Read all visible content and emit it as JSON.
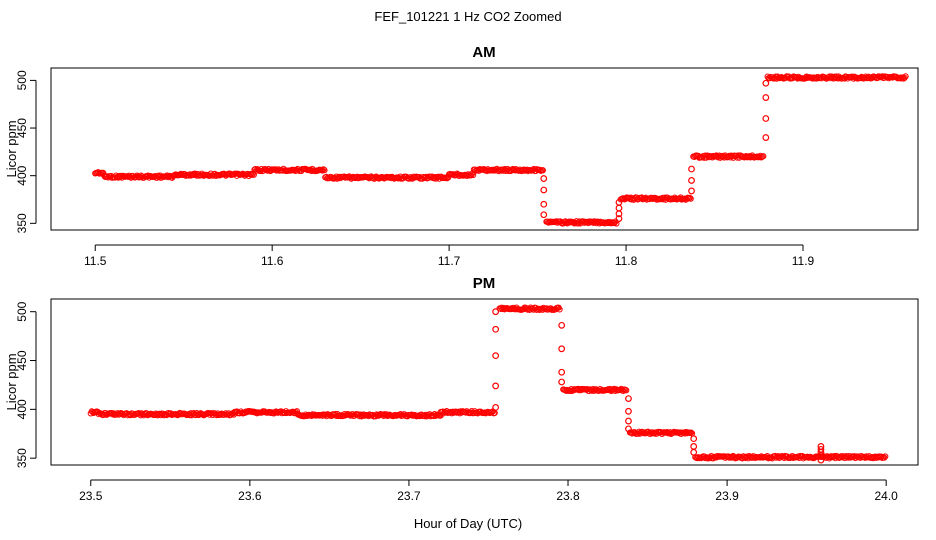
{
  "title": "FEF_101221  1 Hz CO2 Zoomed",
  "xlabel": "Hour of Day (UTC)",
  "chart_data": [
    {
      "type": "scatter",
      "title": "AM",
      "xlabel": "",
      "ylabel": "Licor ppm",
      "xlim": [
        11.475,
        11.965
      ],
      "ylim": [
        343,
        513
      ],
      "xticks": [
        "11.5",
        "11.6",
        "11.7",
        "11.8",
        "11.9"
      ],
      "yticks": [
        "350",
        "400",
        "450",
        "500"
      ],
      "marker": "open-circle",
      "color": "#ff0000",
      "levels": [
        {
          "x0": 11.5,
          "x1": 11.505,
          "y": 403
        },
        {
          "x0": 11.505,
          "x1": 11.545,
          "y": 399
        },
        {
          "x0": 11.545,
          "x1": 11.59,
          "y": 401
        },
        {
          "x0": 11.59,
          "x1": 11.63,
          "y": 406
        },
        {
          "x0": 11.63,
          "x1": 11.7,
          "y": 398
        },
        {
          "x0": 11.7,
          "x1": 11.714,
          "y": 401
        },
        {
          "x0": 11.714,
          "x1": 11.753,
          "y": 406
        },
        {
          "x0": 11.755,
          "x1": 11.795,
          "y": 351
        },
        {
          "x0": 11.797,
          "x1": 11.837,
          "y": 376
        },
        {
          "x0": 11.838,
          "x1": 11.878,
          "y": 420
        },
        {
          "x0": 11.88,
          "x1": 11.958,
          "y": 503
        }
      ],
      "transitions": [
        {
          "x": 11.7535,
          "values": [
            397,
            385,
            370,
            359
          ]
        },
        {
          "x": 11.796,
          "values": [
            355,
            360,
            366,
            372
          ]
        },
        {
          "x": 11.837,
          "values": [
            384,
            395,
            407
          ]
        },
        {
          "x": 11.879,
          "values": [
            440,
            460,
            482,
            497
          ]
        }
      ]
    },
    {
      "type": "scatter",
      "title": "PM",
      "xlabel": "",
      "ylabel": "Licor ppm",
      "xlim": [
        23.475,
        24.02
      ],
      "ylim": [
        343,
        513
      ],
      "xticks": [
        "23.5",
        "23.6",
        "23.7",
        "23.8",
        "23.9",
        "24.0"
      ],
      "yticks": [
        "350",
        "400",
        "450",
        "500"
      ],
      "marker": "open-circle",
      "color": "#ff0000",
      "levels": [
        {
          "x0": 23.5,
          "x1": 23.505,
          "y": 397
        },
        {
          "x0": 23.505,
          "x1": 23.59,
          "y": 395
        },
        {
          "x0": 23.59,
          "x1": 23.63,
          "y": 397
        },
        {
          "x0": 23.63,
          "x1": 23.72,
          "y": 394
        },
        {
          "x0": 23.72,
          "x1": 23.754,
          "y": 397
        },
        {
          "x0": 23.757,
          "x1": 23.795,
          "y": 503
        },
        {
          "x0": 23.797,
          "x1": 23.837,
          "y": 420
        },
        {
          "x0": 23.839,
          "x1": 23.878,
          "y": 376
        },
        {
          "x0": 23.88,
          "x1": 24.0,
          "y": 351
        }
      ],
      "transitions": [
        {
          "x": 23.7545,
          "values": [
            402,
            424,
            455,
            482,
            500
          ]
        },
        {
          "x": 23.796,
          "values": [
            486,
            462,
            438,
            428
          ]
        },
        {
          "x": 23.838,
          "values": [
            411,
            398,
            388,
            380
          ]
        },
        {
          "x": 23.879,
          "values": [
            370,
            362,
            356
          ]
        },
        {
          "x": 23.959,
          "values": [
            362,
            359,
            356,
            353,
            348
          ]
        }
      ]
    }
  ]
}
